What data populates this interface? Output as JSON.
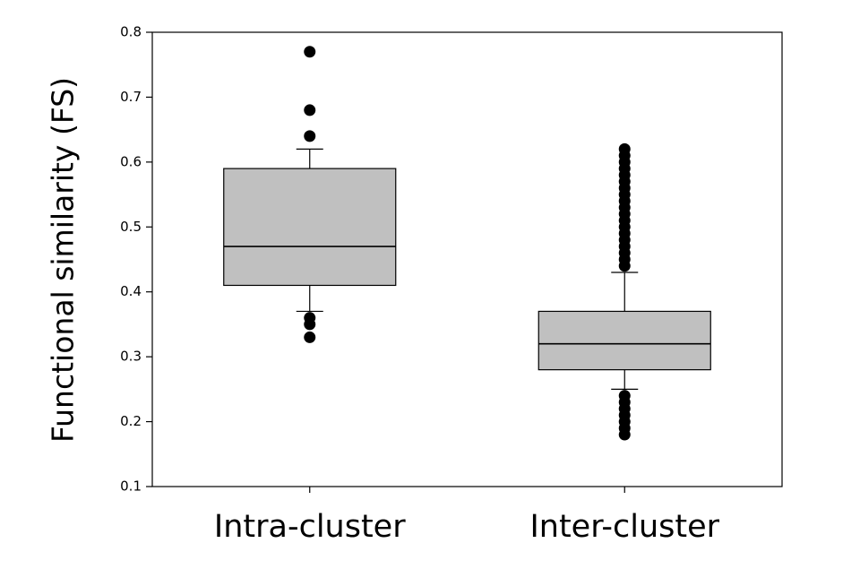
{
  "chart_data": {
    "type": "box",
    "ylabel": "Functional similarity (FS)",
    "categories": [
      "Intra-cluster",
      "Inter-cluster"
    ],
    "color": "#c0c0c0",
    "ylim": [
      0.1,
      0.8
    ],
    "yticks": [
      0.1,
      0.2,
      0.3,
      0.4,
      0.5,
      0.6,
      0.7,
      0.8
    ],
    "series": [
      {
        "whislo": 0.37,
        "q1": 0.41,
        "med": 0.47,
        "q3": 0.59,
        "whishi": 0.62,
        "outliers": [
          0.77,
          0.68,
          0.64,
          0.36,
          0.35,
          0.33
        ]
      },
      {
        "whislo": 0.25,
        "q1": 0.28,
        "med": 0.32,
        "q3": 0.37,
        "whishi": 0.43,
        "outliers": [
          0.44,
          0.45,
          0.46,
          0.47,
          0.48,
          0.49,
          0.5,
          0.51,
          0.52,
          0.53,
          0.54,
          0.55,
          0.56,
          0.57,
          0.58,
          0.59,
          0.6,
          0.61,
          0.62,
          0.24,
          0.23,
          0.22,
          0.21,
          0.2,
          0.19,
          0.18
        ]
      }
    ]
  }
}
